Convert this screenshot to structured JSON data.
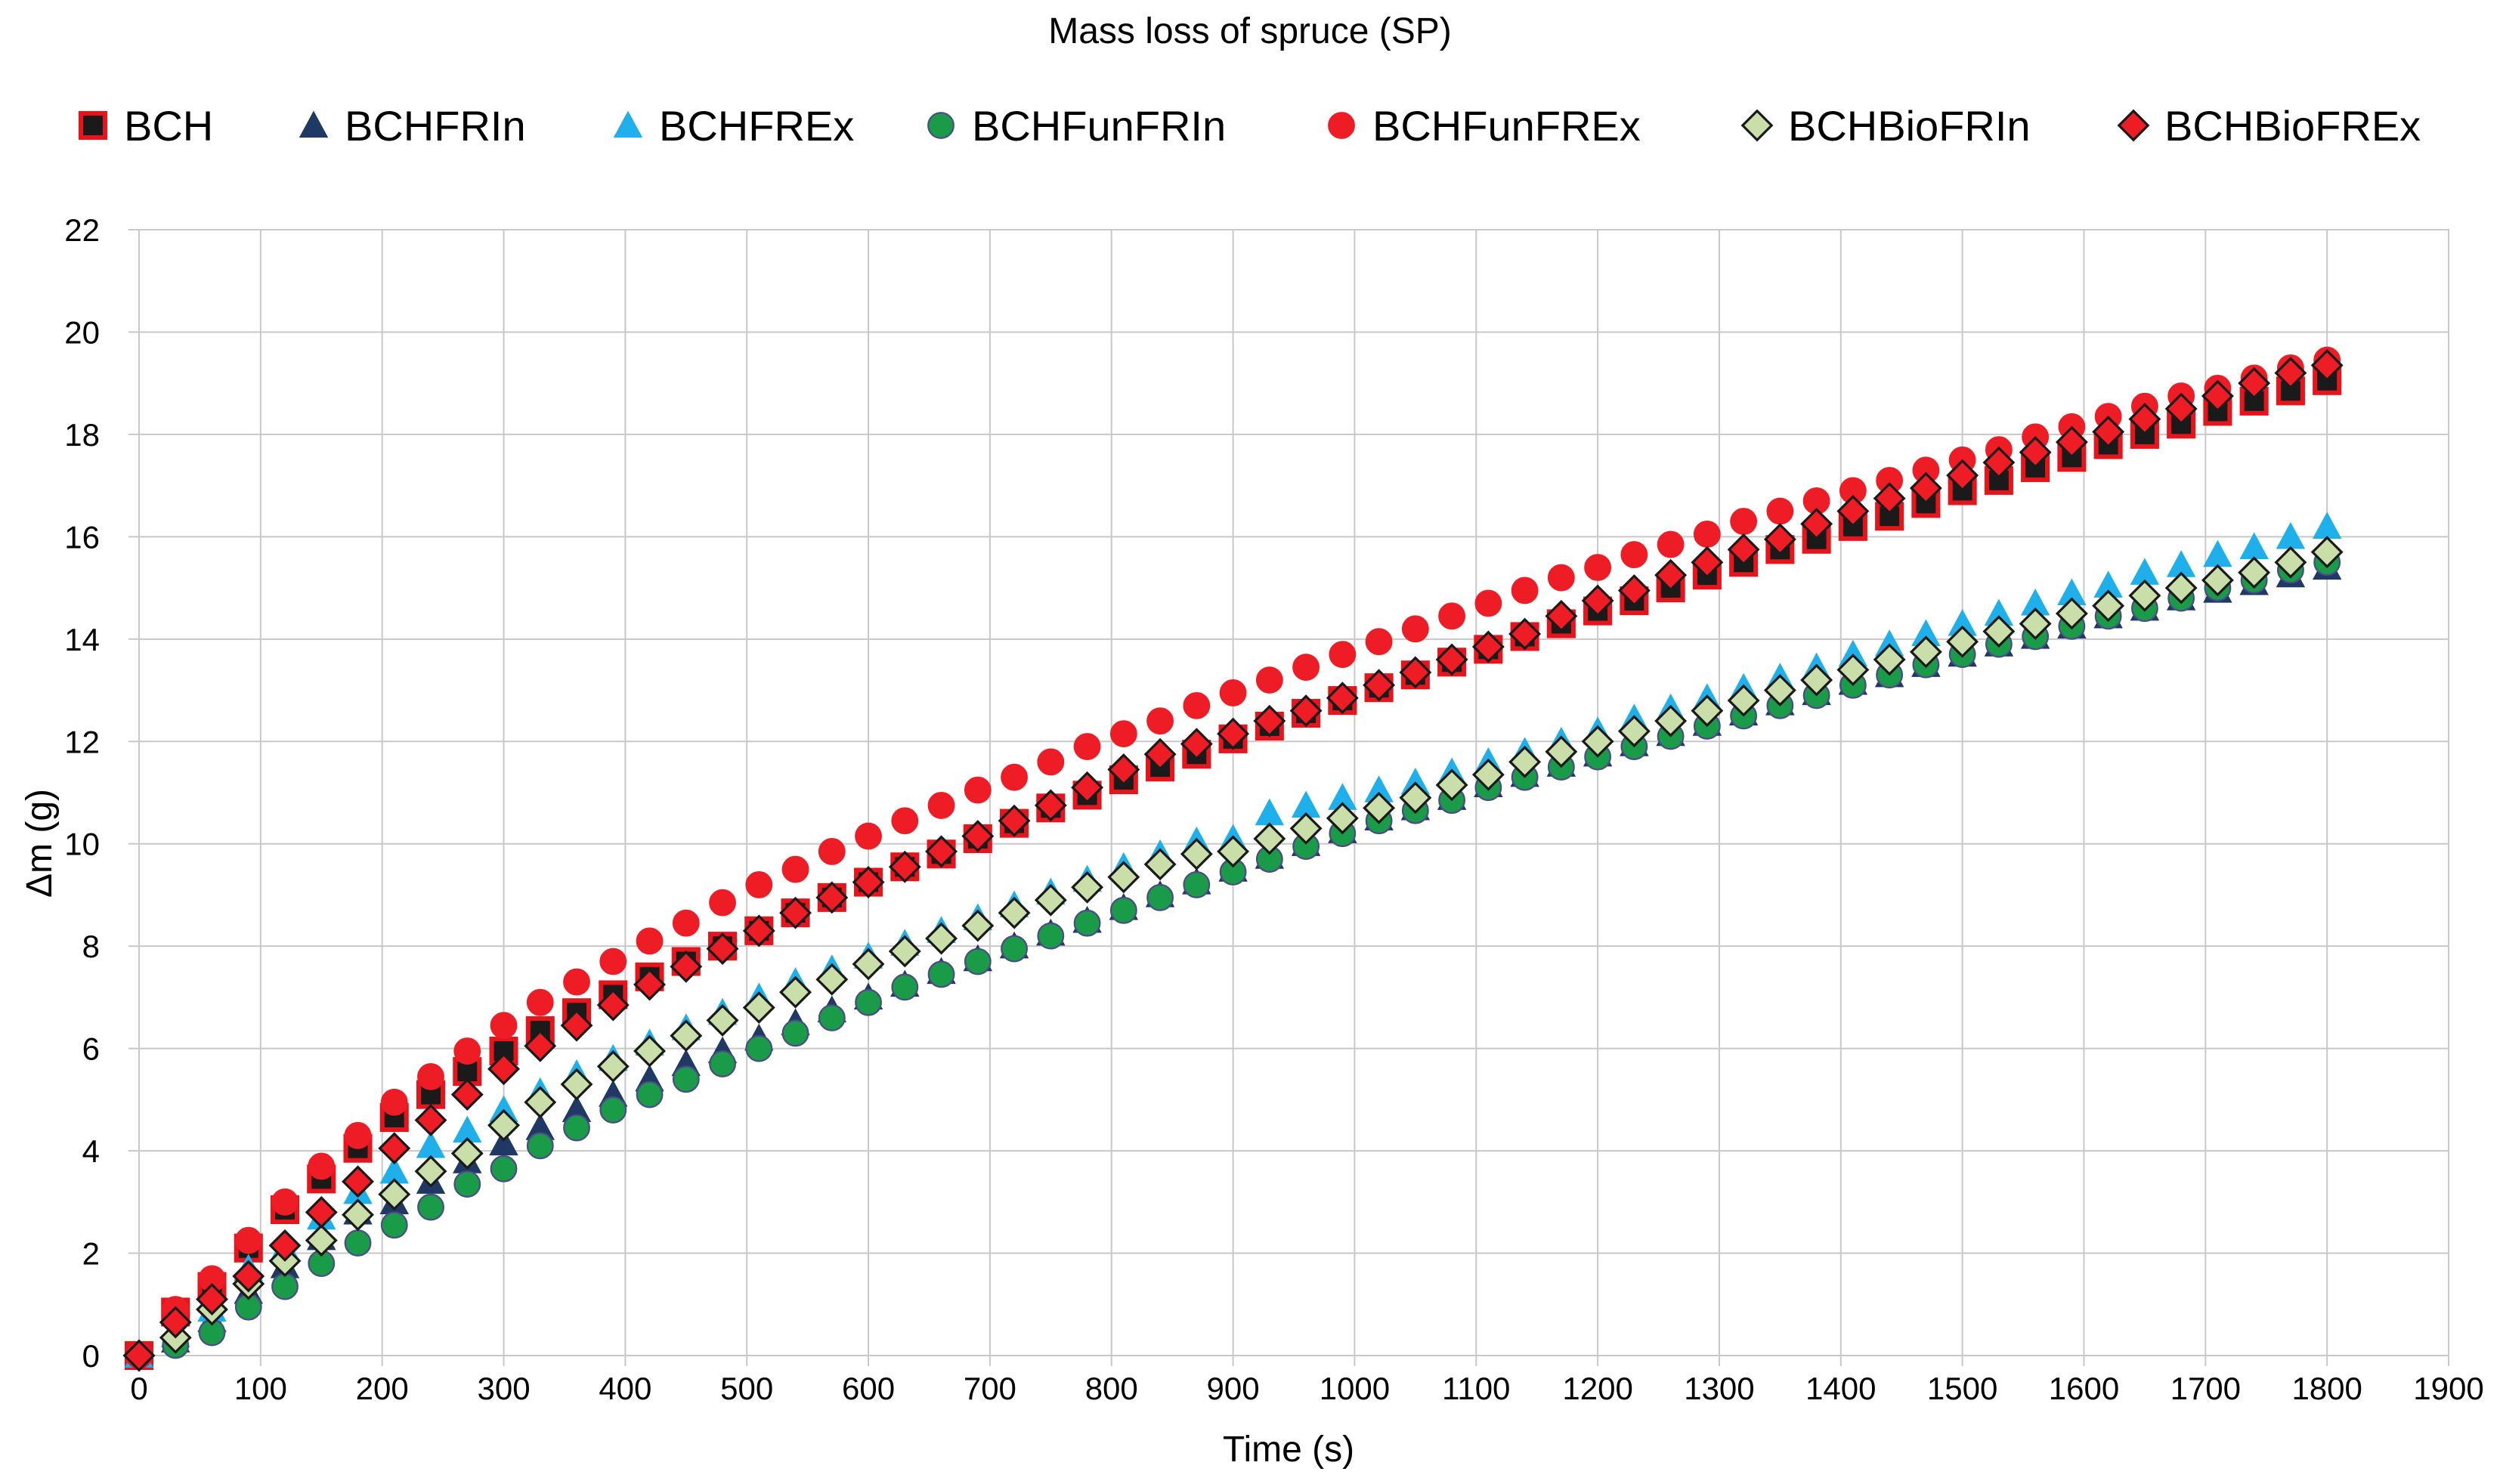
{
  "chart_data": {
    "type": "scatter",
    "title": "Mass loss of spruce (SP)",
    "xlabel": "Time (s)",
    "ylabel": "Δm (g)",
    "xlim": [
      0,
      1900
    ],
    "ylim": [
      0,
      22
    ],
    "xticks": [
      0,
      100,
      200,
      300,
      400,
      500,
      600,
      700,
      800,
      900,
      1000,
      1100,
      1200,
      1300,
      1400,
      1500,
      1600,
      1700,
      1800,
      1900
    ],
    "yticks": [
      0,
      2,
      4,
      6,
      8,
      10,
      12,
      14,
      16,
      18,
      20,
      22
    ],
    "grid": true,
    "legend_position": "top",
    "x": [
      0,
      30,
      60,
      90,
      120,
      150,
      180,
      210,
      240,
      270,
      300,
      330,
      360,
      390,
      420,
      450,
      480,
      510,
      540,
      570,
      600,
      630,
      660,
      690,
      720,
      750,
      780,
      810,
      840,
      870,
      900,
      930,
      960,
      990,
      1020,
      1050,
      1080,
      1110,
      1140,
      1170,
      1200,
      1230,
      1260,
      1290,
      1320,
      1350,
      1380,
      1410,
      1440,
      1470,
      1500,
      1530,
      1560,
      1590,
      1620,
      1650,
      1680,
      1710,
      1740,
      1770,
      1800
    ],
    "series": [
      {
        "name": "BCH",
        "marker": "square",
        "fill": "#1a1a1a",
        "stroke": "#e8141b",
        "values": [
          0,
          0.85,
          1.35,
          2.1,
          2.85,
          3.45,
          4.05,
          4.65,
          5.1,
          5.55,
          5.95,
          6.35,
          6.7,
          7.05,
          7.4,
          7.7,
          8.0,
          8.3,
          8.65,
          8.95,
          9.25,
          9.55,
          9.8,
          10.1,
          10.4,
          10.7,
          10.95,
          11.25,
          11.5,
          11.75,
          12.05,
          12.3,
          12.55,
          12.8,
          13.05,
          13.3,
          13.55,
          13.8,
          14.05,
          14.3,
          14.55,
          14.75,
          15.0,
          15.25,
          15.5,
          15.75,
          15.95,
          16.2,
          16.4,
          16.65,
          16.9,
          17.1,
          17.35,
          17.55,
          17.8,
          18.0,
          18.2,
          18.45,
          18.65,
          18.85,
          19.05
        ]
      },
      {
        "name": "BCHFRIn",
        "marker": "triangle",
        "fill": "#1f3864",
        "stroke": "#1f3864",
        "values": [
          0,
          0.3,
          0.7,
          1.25,
          1.75,
          2.3,
          2.8,
          3.0,
          3.4,
          3.8,
          4.15,
          4.45,
          4.8,
          5.1,
          5.4,
          5.7,
          5.95,
          6.2,
          6.5,
          6.75,
          7.0,
          7.25,
          7.5,
          7.75,
          8.0,
          8.25,
          8.5,
          8.75,
          9.0,
          9.25,
          9.5,
          9.75,
          10.0,
          10.25,
          10.5,
          10.7,
          10.9,
          11.15,
          11.35,
          11.55,
          11.75,
          11.95,
          12.15,
          12.35,
          12.55,
          12.75,
          12.95,
          13.15,
          13.3,
          13.5,
          13.7,
          13.9,
          14.05,
          14.25,
          14.45,
          14.6,
          14.8,
          14.95,
          15.1,
          15.25,
          15.4
        ]
      },
      {
        "name": "BCHFREx",
        "marker": "triangle",
        "fill": "#1fb0ec",
        "stroke": "#1fb0ec",
        "values": [
          0,
          0.4,
          0.9,
          1.7,
          2.1,
          2.7,
          3.2,
          3.6,
          4.1,
          4.4,
          4.8,
          5.15,
          5.5,
          5.8,
          6.1,
          6.4,
          6.7,
          7.0,
          7.3,
          7.55,
          7.8,
          8.05,
          8.3,
          8.55,
          8.8,
          9.05,
          9.3,
          9.55,
          9.8,
          10.05,
          10.1,
          10.6,
          10.75,
          10.9,
          11.05,
          11.2,
          11.4,
          11.6,
          11.8,
          12.0,
          12.2,
          12.45,
          12.65,
          12.85,
          13.05,
          13.25,
          13.45,
          13.7,
          13.9,
          14.1,
          14.3,
          14.5,
          14.7,
          14.9,
          15.05,
          15.3,
          15.45,
          15.65,
          15.8,
          16.0,
          16.2
        ]
      },
      {
        "name": "BCHFunFRIn",
        "marker": "circle",
        "fill": "#1a9b48",
        "stroke": "#4b4b8a",
        "values": [
          0,
          0.2,
          0.45,
          0.95,
          1.35,
          1.8,
          2.2,
          2.55,
          2.9,
          3.35,
          3.65,
          4.1,
          4.45,
          4.8,
          5.1,
          5.4,
          5.7,
          6.0,
          6.3,
          6.6,
          6.9,
          7.2,
          7.45,
          7.7,
          7.95,
          8.2,
          8.45,
          8.7,
          8.95,
          9.2,
          9.45,
          9.7,
          9.95,
          10.2,
          10.45,
          10.65,
          10.85,
          11.1,
          11.3,
          11.5,
          11.7,
          11.9,
          12.1,
          12.3,
          12.5,
          12.7,
          12.9,
          13.1,
          13.3,
          13.5,
          13.7,
          13.9,
          14.05,
          14.25,
          14.45,
          14.6,
          14.8,
          15.0,
          15.15,
          15.35,
          15.5
        ]
      },
      {
        "name": "BCHFunFREx",
        "marker": "circle",
        "fill": "#ee1c24",
        "stroke": "#ee1c24",
        "values": [
          0,
          0.9,
          1.5,
          2.25,
          3.0,
          3.7,
          4.3,
          4.95,
          5.45,
          5.95,
          6.45,
          6.9,
          7.3,
          7.7,
          8.1,
          8.45,
          8.85,
          9.2,
          9.5,
          9.85,
          10.15,
          10.45,
          10.75,
          11.05,
          11.3,
          11.6,
          11.9,
          12.15,
          12.4,
          12.7,
          12.95,
          13.2,
          13.45,
          13.7,
          13.95,
          14.2,
          14.45,
          14.7,
          14.95,
          15.2,
          15.4,
          15.65,
          15.85,
          16.05,
          16.3,
          16.5,
          16.7,
          16.9,
          17.1,
          17.3,
          17.5,
          17.7,
          17.95,
          18.15,
          18.35,
          18.55,
          18.75,
          18.9,
          19.1,
          19.3,
          19.45
        ]
      },
      {
        "name": "BCHBioFRIn",
        "marker": "diamond",
        "fill": "#c9dea8",
        "stroke": "#1a1a1a",
        "values": [
          0,
          0.35,
          0.9,
          1.4,
          1.85,
          2.25,
          2.75,
          3.15,
          3.6,
          3.95,
          4.5,
          4.95,
          5.3,
          5.65,
          5.95,
          6.25,
          6.55,
          6.8,
          7.1,
          7.35,
          7.65,
          7.9,
          8.15,
          8.4,
          8.65,
          8.9,
          9.15,
          9.35,
          9.6,
          9.8,
          9.85,
          10.1,
          10.3,
          10.5,
          10.7,
          10.9,
          11.15,
          11.35,
          11.6,
          11.8,
          12.0,
          12.2,
          12.4,
          12.6,
          12.8,
          13.0,
          13.2,
          13.4,
          13.6,
          13.75,
          13.95,
          14.15,
          14.3,
          14.5,
          14.65,
          14.85,
          15.0,
          15.15,
          15.3,
          15.5,
          15.7
        ]
      },
      {
        "name": "BCHBioFREx",
        "marker": "diamond",
        "fill": "#ee1c24",
        "stroke": "#1a1a1a",
        "values": [
          0,
          0.65,
          1.1,
          1.55,
          2.15,
          2.8,
          3.4,
          4.05,
          4.6,
          5.1,
          5.6,
          6.05,
          6.45,
          6.85,
          7.25,
          7.6,
          7.95,
          8.3,
          8.65,
          8.95,
          9.25,
          9.55,
          9.85,
          10.15,
          10.45,
          10.75,
          11.1,
          11.45,
          11.75,
          11.95,
          12.15,
          12.4,
          12.6,
          12.85,
          13.1,
          13.35,
          13.6,
          13.85,
          14.1,
          14.45,
          14.75,
          14.95,
          15.25,
          15.5,
          15.75,
          15.95,
          16.25,
          16.5,
          16.75,
          16.95,
          17.2,
          17.45,
          17.65,
          17.85,
          18.05,
          18.3,
          18.5,
          18.75,
          19.0,
          19.2,
          19.35
        ]
      }
    ]
  }
}
